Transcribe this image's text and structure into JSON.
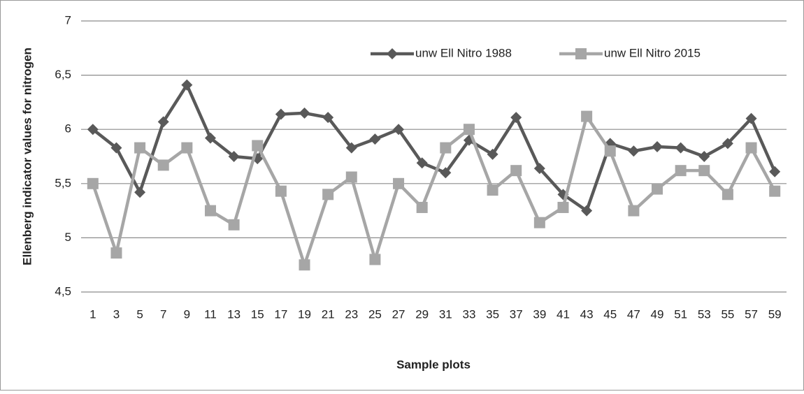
{
  "chart_data": {
    "type": "line",
    "x_label": "Sample plots",
    "y_label": "Ellenberg indicator values for nitrogen",
    "categories": [
      "1",
      "3",
      "5",
      "7",
      "9",
      "11",
      "13",
      "15",
      "17",
      "19",
      "21",
      "23",
      "25",
      "27",
      "29",
      "31",
      "33",
      "35",
      "37",
      "39",
      "41",
      "43",
      "45",
      "47",
      "49",
      "51",
      "53",
      "55",
      "57",
      "59"
    ],
    "series": [
      {
        "name": "unw Ell Nitro 1988",
        "color": "#595959",
        "marker": "diamond",
        "values": [
          6.0,
          5.83,
          5.42,
          6.07,
          6.41,
          5.92,
          5.75,
          5.73,
          6.14,
          6.15,
          6.11,
          5.83,
          5.91,
          6.0,
          5.69,
          5.6,
          5.9,
          5.77,
          6.11,
          5.64,
          5.4,
          5.25,
          5.87,
          5.8,
          5.84,
          5.83,
          5.75,
          5.87,
          6.1,
          5.61
        ]
      },
      {
        "name": "unw Ell Nitro 2015",
        "color": "#a6a6a6",
        "marker": "square",
        "values": [
          5.5,
          4.86,
          5.83,
          5.67,
          5.83,
          5.25,
          5.12,
          5.85,
          5.43,
          4.75,
          5.4,
          5.56,
          4.8,
          5.5,
          5.28,
          5.83,
          6.0,
          5.44,
          5.62,
          5.14,
          5.28,
          6.12,
          5.8,
          5.25,
          5.45,
          5.62,
          5.62,
          5.4,
          5.83,
          5.43
        ]
      }
    ],
    "ylim": [
      4.5,
      7
    ],
    "yticks": [
      {
        "value": 4.5,
        "label": "4,5"
      },
      5,
      {
        "value": 5.5,
        "label": "5,5"
      },
      6,
      {
        "value": 6.5,
        "label": "6,5"
      },
      7
    ],
    "grid": true,
    "legend": "top-right"
  }
}
